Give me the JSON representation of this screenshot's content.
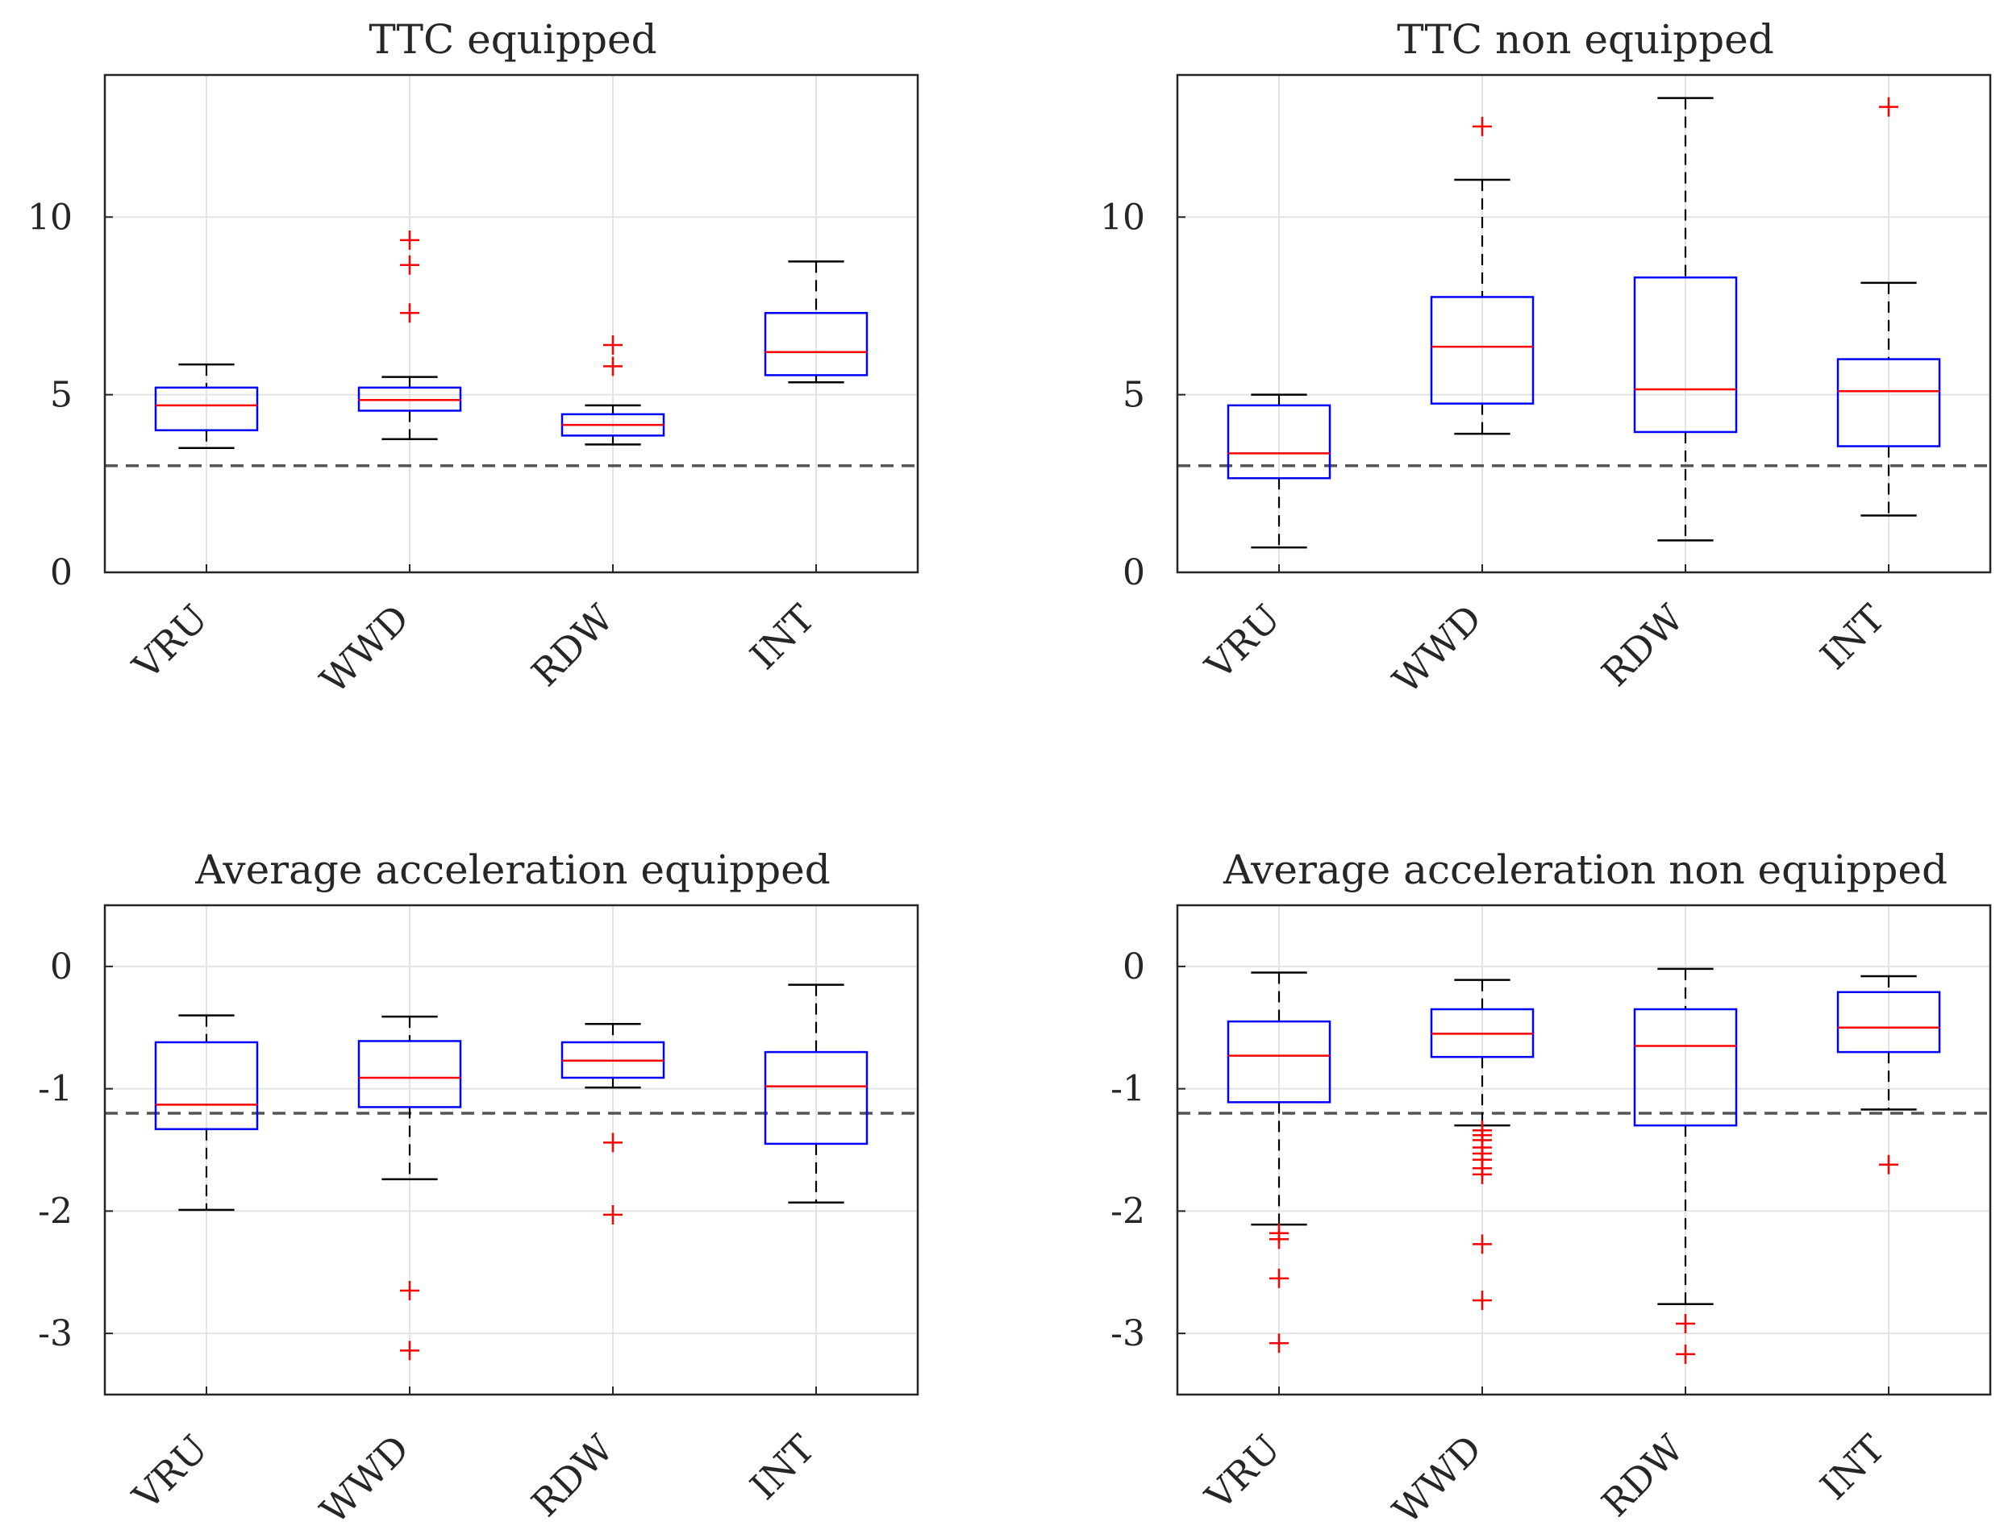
{
  "chart_data": [
    {
      "type": "box",
      "title": "TTC equipped",
      "xlabel": "",
      "ylabel": "",
      "categories": [
        "VRU",
        "WWD",
        "RDW",
        "INT"
      ],
      "ylim": [
        0,
        14
      ],
      "yticks": [
        0,
        5,
        10
      ],
      "grid": true,
      "reference_line": 3,
      "boxes": [
        {
          "category": "VRU",
          "whisker_low": 3.5,
          "q1": 4.0,
          "median": 4.7,
          "q3": 5.2,
          "whisker_high": 5.85,
          "outliers": []
        },
        {
          "category": "WWD",
          "whisker_low": 3.75,
          "q1": 4.55,
          "median": 4.85,
          "q3": 5.2,
          "whisker_high": 5.5,
          "outliers": [
            7.3,
            8.65,
            9.35
          ]
        },
        {
          "category": "RDW",
          "whisker_low": 3.6,
          "q1": 3.85,
          "median": 4.15,
          "q3": 4.45,
          "whisker_high": 4.7,
          "outliers": [
            5.8,
            6.4
          ]
        },
        {
          "category": "INT",
          "whisker_low": 5.35,
          "q1": 5.55,
          "median": 6.2,
          "q3": 7.3,
          "whisker_high": 8.75,
          "outliers": []
        }
      ]
    },
    {
      "type": "box",
      "title": "TTC non equipped",
      "xlabel": "",
      "ylabel": "",
      "categories": [
        "VRU",
        "WWD",
        "RDW",
        "INT"
      ],
      "ylim": [
        0,
        14
      ],
      "yticks": [
        0,
        5,
        10
      ],
      "grid": true,
      "reference_line": 3,
      "boxes": [
        {
          "category": "VRU",
          "whisker_low": 0.7,
          "q1": 2.65,
          "median": 3.35,
          "q3": 4.7,
          "whisker_high": 5.0,
          "outliers": []
        },
        {
          "category": "WWD",
          "whisker_low": 3.9,
          "q1": 4.75,
          "median": 6.35,
          "q3": 7.75,
          "whisker_high": 11.05,
          "outliers": [
            12.55
          ]
        },
        {
          "category": "RDW",
          "whisker_low": 0.9,
          "q1": 3.95,
          "median": 5.15,
          "q3": 8.3,
          "whisker_high": 13.35,
          "outliers": []
        },
        {
          "category": "INT",
          "whisker_low": 1.6,
          "q1": 3.55,
          "median": 5.1,
          "q3": 6.0,
          "whisker_high": 8.15,
          "outliers": [
            13.1
          ]
        }
      ]
    },
    {
      "type": "box",
      "title": "Average acceleration equipped",
      "xlabel": "",
      "ylabel": "",
      "categories": [
        "VRU",
        "WWD",
        "RDW",
        "INT"
      ],
      "ylim": [
        -3.5,
        0.5
      ],
      "yticks": [
        -3,
        -2,
        -1,
        0
      ],
      "grid": true,
      "reference_line": -1.2,
      "boxes": [
        {
          "category": "VRU",
          "whisker_low": -1.99,
          "q1": -1.33,
          "median": -1.13,
          "q3": -0.62,
          "whisker_high": -0.4,
          "outliers": []
        },
        {
          "category": "WWD",
          "whisker_low": -1.74,
          "q1": -1.15,
          "median": -0.91,
          "q3": -0.61,
          "whisker_high": -0.41,
          "outliers": [
            -2.65,
            -3.14
          ]
        },
        {
          "category": "RDW",
          "whisker_low": -0.99,
          "q1": -0.91,
          "median": -0.77,
          "q3": -0.62,
          "whisker_high": -0.47,
          "outliers": [
            -1.44,
            -2.03
          ]
        },
        {
          "category": "INT",
          "whisker_low": -1.93,
          "q1": -1.45,
          "median": -0.98,
          "q3": -0.7,
          "whisker_high": -0.15,
          "outliers": []
        }
      ]
    },
    {
      "type": "box",
      "title": "Average acceleration non equipped",
      "xlabel": "",
      "ylabel": "",
      "categories": [
        "VRU",
        "WWD",
        "RDW",
        "INT"
      ],
      "ylim": [
        -3.5,
        0.5
      ],
      "yticks": [
        -3,
        -2,
        -1,
        0
      ],
      "grid": true,
      "reference_line": -1.2,
      "boxes": [
        {
          "category": "VRU",
          "whisker_low": -2.11,
          "q1": -1.11,
          "median": -0.73,
          "q3": -0.45,
          "whisker_high": -0.05,
          "outliers": [
            -2.18,
            -2.23,
            -2.55,
            -3.08
          ]
        },
        {
          "category": "WWD",
          "whisker_low": -1.3,
          "q1": -0.74,
          "median": -0.55,
          "q3": -0.35,
          "whisker_high": -0.11,
          "outliers": [
            -1.34,
            -1.38,
            -1.42,
            -1.48,
            -1.53,
            -1.58,
            -1.65,
            -1.7,
            -2.27,
            -2.73
          ]
        },
        {
          "category": "RDW",
          "whisker_low": -2.76,
          "q1": -1.3,
          "median": -0.65,
          "q3": -0.35,
          "whisker_high": -0.02,
          "outliers": [
            -2.92,
            -3.17
          ]
        },
        {
          "category": "INT",
          "whisker_low": -1.17,
          "q1": -0.7,
          "median": -0.5,
          "q3": -0.21,
          "whisker_high": -0.08,
          "outliers": [
            -1.62
          ]
        }
      ]
    }
  ]
}
